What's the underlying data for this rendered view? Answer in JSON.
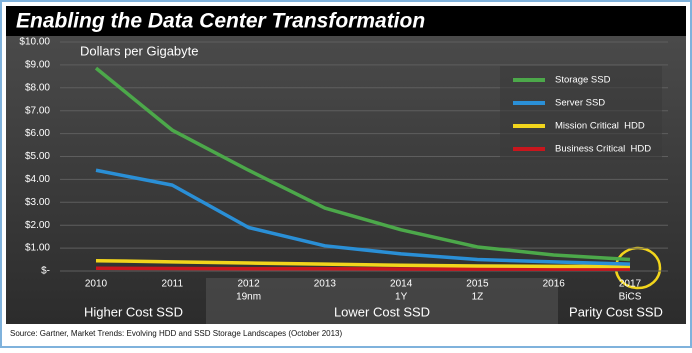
{
  "chart_data": {
    "type": "line",
    "title": "Enabling the Data Center Transformation",
    "y_label": "Dollars per Gigabyte",
    "categories": [
      "2010",
      "2011",
      "2012",
      "2013",
      "2014",
      "2015",
      "2016",
      "2017"
    ],
    "sublabels": [
      null,
      null,
      "19nm",
      null,
      "1Y",
      "1Z",
      null,
      "BiCS"
    ],
    "series": [
      {
        "name": "Storage SSD",
        "color": "#4ca84a",
        "values": [
          8.86,
          6.15,
          4.4,
          2.75,
          1.8,
          1.05,
          0.7,
          0.5
        ]
      },
      {
        "name": "Server SSD",
        "color": "#2a8fd6",
        "values": [
          4.4,
          3.75,
          1.9,
          1.1,
          0.75,
          0.5,
          0.4,
          0.3
        ]
      },
      {
        "name": "Mission Critical  HDD",
        "color": "#f2d51c",
        "values": [
          0.45,
          0.4,
          0.35,
          0.3,
          0.25,
          0.22,
          0.2,
          0.2
        ]
      },
      {
        "name": "Business Critical  HDD",
        "color": "#c8161d",
        "values": [
          0.12,
          0.11,
          0.1,
          0.1,
          0.09,
          0.08,
          0.08,
          0.08
        ]
      }
    ],
    "ylim": [
      0,
      10
    ],
    "yticks": [
      {
        "value": 0,
        "label": "$-"
      },
      {
        "value": 1,
        "label": "$1.00"
      },
      {
        "value": 2,
        "label": "$2.00"
      },
      {
        "value": 3,
        "label": "$3.00"
      },
      {
        "value": 4,
        "label": "$4.00"
      },
      {
        "value": 5,
        "label": "$5.00"
      },
      {
        "value": 6,
        "label": "$6.00"
      },
      {
        "value": 7,
        "label": "$7.00"
      },
      {
        "value": 8,
        "label": "$8.00"
      },
      {
        "value": 9,
        "label": "$9.00"
      },
      {
        "value": 10,
        "label": "$10.00"
      }
    ],
    "grid": true,
    "legend": "upper right",
    "cost_bands": [
      "Higher Cost SSD",
      "Lower Cost SSD",
      "Parity Cost SSD"
    ],
    "source": "Source: Gartner, Market Trends: Evolving HDD and SSD Storage Landscapes (October 2013)"
  }
}
